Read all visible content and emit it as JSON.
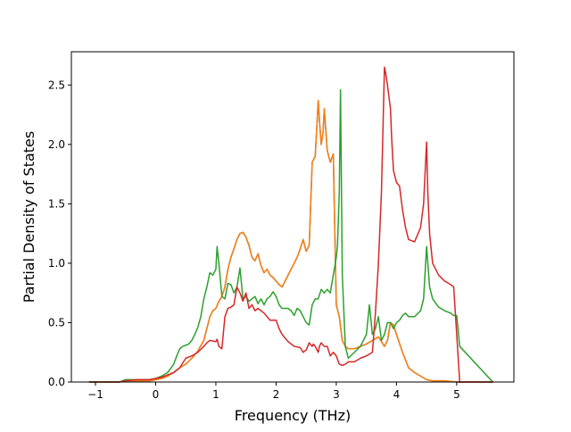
{
  "chart_data": {
    "type": "line",
    "title": "",
    "xlabel": "Frequency (THz)",
    "ylabel": "Partial Density of States",
    "xlim": [
      -1.4,
      5.95
    ],
    "ylim": [
      0,
      2.78
    ],
    "xticks": [
      -1,
      0,
      1,
      2,
      3,
      4,
      5
    ],
    "xtick_labels": [
      "−1",
      "0",
      "1",
      "2",
      "3",
      "4",
      "5"
    ],
    "yticks": [
      0.0,
      0.5,
      1.0,
      1.5,
      2.0,
      2.5
    ],
    "ytick_labels": [
      "0.0",
      "0.5",
      "1.0",
      "1.5",
      "2.0",
      "2.5"
    ],
    "grid": false,
    "legend": false,
    "series": [
      {
        "color": "#1f77b4",
        "x": [
          -1.1,
          -0.6,
          -0.5,
          -0.4,
          -0.3,
          -0.2,
          -0.1,
          0,
          0.1,
          0.2,
          0.3,
          0.4,
          0.5,
          0.6,
          0.7,
          0.8,
          0.85,
          0.9,
          0.95,
          1.0,
          1.05,
          1.1,
          1.15,
          1.2,
          1.25,
          1.3,
          1.35,
          1.4,
          1.45,
          1.5,
          1.55,
          1.6,
          1.65,
          1.7,
          1.75,
          1.8,
          1.85,
          1.9,
          1.95,
          2.0,
          2.05,
          2.1,
          2.15,
          2.2,
          2.25,
          2.3,
          2.35,
          2.4,
          2.45,
          2.5,
          2.55,
          2.6,
          2.65,
          2.7,
          2.72,
          2.75,
          2.78,
          2.8,
          2.85,
          2.9,
          2.95,
          3.0,
          3.05,
          3.1,
          3.15,
          3.2,
          3.3,
          3.4,
          3.5,
          3.6,
          3.7,
          3.8,
          3.85,
          3.9,
          3.95,
          4.0,
          4.1,
          4.2,
          4.3,
          4.4,
          4.5,
          4.6,
          4.7,
          4.8,
          5.0,
          5.6
        ],
        "y": [
          0.0,
          0.0,
          0.01,
          0.01,
          0.01,
          0.01,
          0.01,
          0.02,
          0.03,
          0.05,
          0.08,
          0.12,
          0.15,
          0.2,
          0.26,
          0.35,
          0.45,
          0.55,
          0.6,
          0.62,
          0.68,
          0.72,
          0.8,
          0.95,
          1.05,
          1.12,
          1.2,
          1.25,
          1.26,
          1.22,
          1.15,
          1.05,
          1.02,
          1.08,
          0.98,
          0.92,
          0.95,
          0.9,
          0.88,
          0.85,
          0.82,
          0.8,
          0.85,
          0.9,
          0.95,
          1.0,
          1.05,
          1.12,
          1.2,
          1.1,
          1.15,
          1.85,
          1.9,
          2.37,
          2.2,
          2.0,
          2.1,
          2.3,
          1.95,
          1.85,
          1.92,
          0.65,
          0.55,
          0.35,
          0.3,
          0.28,
          0.28,
          0.3,
          0.32,
          0.35,
          0.38,
          0.3,
          0.35,
          0.5,
          0.48,
          0.4,
          0.25,
          0.12,
          0.08,
          0.05,
          0.02,
          0.01,
          0.01,
          0.01,
          0.0,
          0.0
        ]
      },
      {
        "color": "#ff7f0e",
        "x": [
          -1.1,
          -0.6,
          -0.5,
          -0.4,
          -0.3,
          -0.2,
          -0.1,
          0,
          0.1,
          0.2,
          0.3,
          0.4,
          0.5,
          0.6,
          0.7,
          0.8,
          0.85,
          0.9,
          0.95,
          1.0,
          1.05,
          1.1,
          1.15,
          1.2,
          1.25,
          1.3,
          1.35,
          1.4,
          1.45,
          1.5,
          1.55,
          1.6,
          1.65,
          1.7,
          1.75,
          1.8,
          1.85,
          1.9,
          1.95,
          2.0,
          2.05,
          2.1,
          2.15,
          2.2,
          2.25,
          2.3,
          2.35,
          2.4,
          2.45,
          2.5,
          2.55,
          2.6,
          2.65,
          2.7,
          2.72,
          2.75,
          2.78,
          2.8,
          2.85,
          2.9,
          2.95,
          3.0,
          3.05,
          3.1,
          3.15,
          3.2,
          3.3,
          3.4,
          3.5,
          3.6,
          3.7,
          3.8,
          3.85,
          3.9,
          3.95,
          4.0,
          4.1,
          4.2,
          4.3,
          4.4,
          4.5,
          4.6,
          4.7,
          4.8,
          5.0,
          5.6
        ],
        "y": [
          0.0,
          0.0,
          0.01,
          0.01,
          0.01,
          0.01,
          0.01,
          0.02,
          0.03,
          0.05,
          0.08,
          0.12,
          0.15,
          0.2,
          0.26,
          0.35,
          0.45,
          0.55,
          0.6,
          0.62,
          0.68,
          0.72,
          0.8,
          0.95,
          1.05,
          1.12,
          1.2,
          1.25,
          1.26,
          1.22,
          1.15,
          1.05,
          1.02,
          1.08,
          0.98,
          0.92,
          0.95,
          0.9,
          0.88,
          0.85,
          0.82,
          0.8,
          0.85,
          0.9,
          0.95,
          1.0,
          1.05,
          1.12,
          1.2,
          1.1,
          1.15,
          1.85,
          1.9,
          2.37,
          2.2,
          2.0,
          2.1,
          2.3,
          1.95,
          1.85,
          1.92,
          0.65,
          0.55,
          0.35,
          0.3,
          0.28,
          0.28,
          0.3,
          0.32,
          0.35,
          0.38,
          0.3,
          0.35,
          0.5,
          0.48,
          0.4,
          0.25,
          0.12,
          0.08,
          0.05,
          0.02,
          0.01,
          0.01,
          0.01,
          0.0,
          0.0
        ]
      },
      {
        "color": "#2ca02c",
        "x": [
          -1.1,
          -0.6,
          -0.5,
          -0.3,
          -0.1,
          0,
          0.1,
          0.2,
          0.3,
          0.35,
          0.4,
          0.45,
          0.5,
          0.55,
          0.6,
          0.65,
          0.7,
          0.75,
          0.8,
          0.85,
          0.9,
          0.95,
          1.0,
          1.02,
          1.05,
          1.1,
          1.15,
          1.2,
          1.25,
          1.3,
          1.35,
          1.4,
          1.45,
          1.5,
          1.55,
          1.6,
          1.65,
          1.7,
          1.75,
          1.8,
          1.85,
          1.9,
          1.95,
          2.0,
          2.05,
          2.1,
          2.15,
          2.2,
          2.25,
          2.3,
          2.35,
          2.4,
          2.45,
          2.5,
          2.55,
          2.6,
          2.65,
          2.7,
          2.75,
          2.8,
          2.85,
          2.9,
          2.95,
          3.0,
          3.02,
          3.05,
          3.07,
          3.1,
          3.15,
          3.2,
          3.3,
          3.4,
          3.5,
          3.55,
          3.6,
          3.65,
          3.7,
          3.75,
          3.8,
          3.85,
          3.9,
          3.95,
          4.0,
          4.05,
          4.1,
          4.15,
          4.2,
          4.3,
          4.4,
          4.45,
          4.5,
          4.55,
          4.6,
          4.7,
          4.8,
          4.9,
          4.95,
          5.0,
          5.05,
          5.6
        ],
        "y": [
          0.0,
          0.0,
          0.02,
          0.02,
          0.02,
          0.03,
          0.05,
          0.08,
          0.15,
          0.22,
          0.28,
          0.3,
          0.31,
          0.32,
          0.35,
          0.4,
          0.46,
          0.55,
          0.7,
          0.8,
          0.92,
          0.9,
          0.95,
          1.14,
          1.0,
          0.72,
          0.7,
          0.83,
          0.82,
          0.75,
          0.8,
          0.96,
          0.7,
          0.72,
          0.68,
          0.7,
          0.72,
          0.66,
          0.7,
          0.65,
          0.7,
          0.72,
          0.76,
          0.72,
          0.65,
          0.62,
          0.62,
          0.62,
          0.6,
          0.56,
          0.62,
          0.6,
          0.55,
          0.5,
          0.48,
          0.65,
          0.7,
          0.7,
          0.78,
          0.75,
          0.78,
          0.75,
          0.9,
          1.05,
          1.15,
          1.6,
          2.46,
          0.9,
          0.3,
          0.2,
          0.25,
          0.3,
          0.4,
          0.65,
          0.4,
          0.45,
          0.55,
          0.35,
          0.4,
          0.5,
          0.5,
          0.45,
          0.5,
          0.52,
          0.56,
          0.58,
          0.55,
          0.55,
          0.6,
          0.7,
          1.14,
          0.8,
          0.7,
          0.63,
          0.6,
          0.58,
          0.56,
          0.56,
          0.3,
          0.0
        ]
      },
      {
        "color": "#d62728",
        "x": [
          -1.1,
          -0.6,
          -0.5,
          -0.3,
          -0.1,
          0,
          0.1,
          0.2,
          0.3,
          0.4,
          0.5,
          0.6,
          0.7,
          0.8,
          0.85,
          0.9,
          1.0,
          1.02,
          1.05,
          1.1,
          1.15,
          1.2,
          1.25,
          1.3,
          1.35,
          1.4,
          1.45,
          1.5,
          1.55,
          1.6,
          1.65,
          1.7,
          1.8,
          1.9,
          2.0,
          2.05,
          2.1,
          2.2,
          2.3,
          2.4,
          2.45,
          2.5,
          2.55,
          2.6,
          2.62,
          2.65,
          2.7,
          2.72,
          2.75,
          2.8,
          2.85,
          2.9,
          2.95,
          3.0,
          3.05,
          3.1,
          3.15,
          3.2,
          3.3,
          3.4,
          3.5,
          3.6,
          3.65,
          3.7,
          3.75,
          3.8,
          3.82,
          3.85,
          3.9,
          3.92,
          3.95,
          4.0,
          4.05,
          4.1,
          4.15,
          4.2,
          4.3,
          4.4,
          4.45,
          4.5,
          4.52,
          4.55,
          4.6,
          4.65,
          4.7,
          4.8,
          4.9,
          4.95,
          5.0,
          5.05,
          5.6
        ],
        "y": [
          0.0,
          0.0,
          0.01,
          0.02,
          0.02,
          0.03,
          0.04,
          0.06,
          0.08,
          0.12,
          0.2,
          0.22,
          0.25,
          0.3,
          0.33,
          0.35,
          0.34,
          0.36,
          0.3,
          0.28,
          0.55,
          0.62,
          0.63,
          0.65,
          0.8,
          0.75,
          0.68,
          0.75,
          0.62,
          0.65,
          0.6,
          0.62,
          0.58,
          0.52,
          0.52,
          0.45,
          0.4,
          0.34,
          0.3,
          0.29,
          0.25,
          0.27,
          0.33,
          0.3,
          0.32,
          0.3,
          0.25,
          0.3,
          0.33,
          0.3,
          0.3,
          0.22,
          0.25,
          0.22,
          0.15,
          0.14,
          0.15,
          0.17,
          0.17,
          0.2,
          0.22,
          0.25,
          0.58,
          1.0,
          1.6,
          2.65,
          2.6,
          2.5,
          2.3,
          2.05,
          1.78,
          1.68,
          1.65,
          1.45,
          1.3,
          1.2,
          1.18,
          1.3,
          1.5,
          2.02,
          1.6,
          1.25,
          1.0,
          0.95,
          0.9,
          0.85,
          0.82,
          0.8,
          0.4,
          0.0,
          0.0
        ]
      }
    ]
  }
}
